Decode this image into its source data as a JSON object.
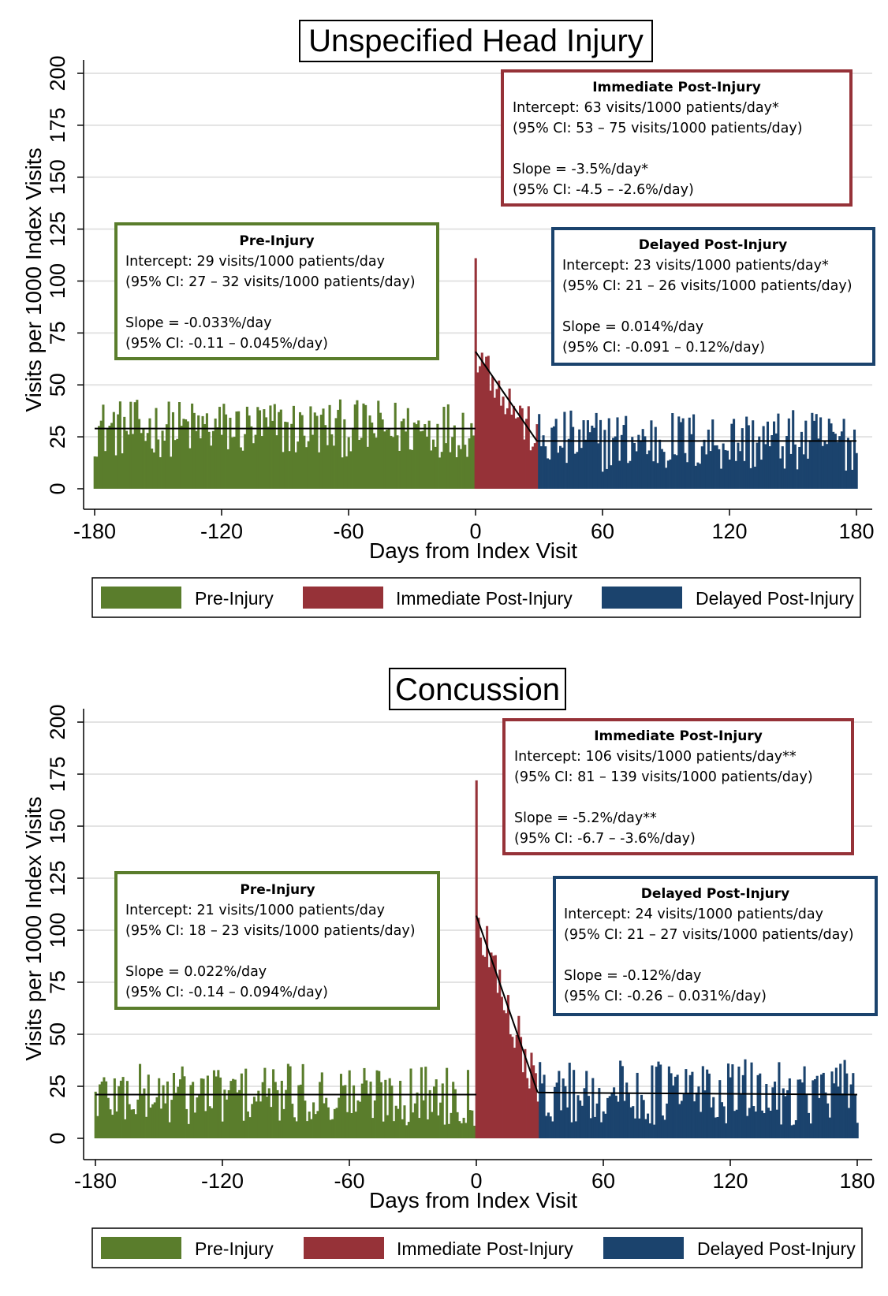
{
  "colors": {
    "pre_injury": "#5a7d2c",
    "immediate_post_injury": "#963238",
    "delayed_post_injury": "#1b436d",
    "grid": "#e3e3e3",
    "trend_line": "#000000"
  },
  "legend": {
    "pre_injury": "Pre-Injury",
    "immediate_post_injury": "Immediate Post-Injury",
    "delayed_post_injury": "Delayed Post-Injury"
  },
  "chart_data": [
    {
      "type": "bar",
      "title": "Unspecified Head Injury",
      "xlabel": "Days from Index Visit",
      "ylabel": "Visits per 1000 Index Visits",
      "xlim": [
        -180,
        180
      ],
      "ylim": [
        0,
        200
      ],
      "xticks": [
        "-180",
        "-120",
        "-60",
        "0",
        "60",
        "120",
        "180"
      ],
      "yticks": [
        "0",
        "25",
        "50",
        "75",
        "100",
        "125",
        "150",
        "175",
        "200"
      ],
      "grid": true,
      "legend_position": "bottom",
      "series": [
        {
          "name": "Pre-Injury",
          "x_range": [
            -180,
            -1
          ],
          "trend": [
            [
              -180,
              29
            ],
            [
              0,
              29
            ]
          ]
        },
        {
          "name": "Immediate Post-Injury",
          "x_range": [
            0,
            29
          ],
          "peak_values": [
            [
              0,
              111
            ],
            [
              1,
              56
            ],
            [
              2,
              59
            ],
            [
              4,
              60
            ],
            [
              6,
              64
            ],
            [
              8,
              54
            ],
            [
              10,
              48
            ]
          ],
          "trend": [
            [
              0,
              66
            ],
            [
              29,
              23
            ]
          ]
        },
        {
          "name": "Delayed Post-Injury",
          "x_range": [
            30,
            180
          ],
          "trend": [
            [
              29,
              23
            ],
            [
              180,
              23
            ]
          ]
        }
      ],
      "annotations": [
        {
          "name": "Immediate Post-Injury",
          "lines": [
            "Intercept: 63 visits/1000 patients/day*",
            "(95% CI: 53 – 75 visits/1000 patients/day)",
            "",
            "Slope = -3.5%/day*",
            "(95% CI: -4.5 – -2.6%/day)"
          ]
        },
        {
          "name": "Pre-Injury",
          "lines": [
            "Intercept: 29 visits/1000 patients/day",
            "(95% CI: 27 – 32 visits/1000 patients/day)",
            "",
            "Slope = -0.033%/day",
            "(95% CI: -0.11 – 0.045%/day)"
          ]
        },
        {
          "name": "Delayed Post-Injury",
          "lines": [
            "Intercept: 23 visits/1000 patients/day*",
            "(95% CI: 21 – 26 visits/1000 patients/day)",
            "",
            "Slope = 0.014%/day",
            "(95% CI: -0.091 – 0.12%/day)"
          ]
        }
      ]
    },
    {
      "type": "bar",
      "title": "Concussion",
      "xlabel": "Days from Index Visit",
      "ylabel": "Visits per 1000 Index Visits",
      "xlim": [
        -180,
        180
      ],
      "ylim": [
        0,
        200
      ],
      "xticks": [
        "-180",
        "-120",
        "-60",
        "0",
        "60",
        "120",
        "180"
      ],
      "yticks": [
        "0",
        "25",
        "50",
        "75",
        "100",
        "125",
        "150",
        "175",
        "200"
      ],
      "grid": true,
      "legend_position": "bottom",
      "series": [
        {
          "name": "Pre-Injury",
          "x_range": [
            -180,
            -1
          ],
          "trend": [
            [
              -180,
              21
            ],
            [
              0,
              21
            ]
          ]
        },
        {
          "name": "Immediate Post-Injury",
          "x_range": [
            0,
            29
          ],
          "peak_values": [
            [
              0,
              172
            ],
            [
              1,
              106
            ],
            [
              3,
              88
            ],
            [
              5,
              102
            ],
            [
              9,
              88
            ],
            [
              12,
              68
            ],
            [
              16,
              50
            ]
          ],
          "trend": [
            [
              0,
              107
            ],
            [
              29,
              22
            ]
          ]
        },
        {
          "name": "Delayed Post-Injury",
          "x_range": [
            30,
            180
          ],
          "trend": [
            [
              29,
              22
            ],
            [
              180,
              21
            ]
          ]
        }
      ],
      "annotations": [
        {
          "name": "Immediate Post-Injury",
          "lines": [
            "Intercept: 106 visits/1000 patients/day**",
            "(95% CI: 81 – 139 visits/1000 patients/day)",
            "",
            "Slope = -5.2%/day**",
            "(95% CI: -6.7 – -3.6%/day)"
          ]
        },
        {
          "name": "Pre-Injury",
          "lines": [
            "Intercept: 21 visits/1000 patients/day",
            "(95% CI: 18 – 23 visits/1000 patients/day)",
            "",
            "Slope = 0.022%/day",
            "(95% CI: -0.14 – 0.094%/day)"
          ]
        },
        {
          "name": "Delayed Post-Injury",
          "lines": [
            "Intercept: 24 visits/1000 patients/day",
            "(95% CI: 21 – 27 visits/1000 patients/day)",
            "",
            "Slope = -0.12%/day",
            "(95% CI: -0.26 – 0.031%/day)"
          ]
        }
      ]
    }
  ]
}
